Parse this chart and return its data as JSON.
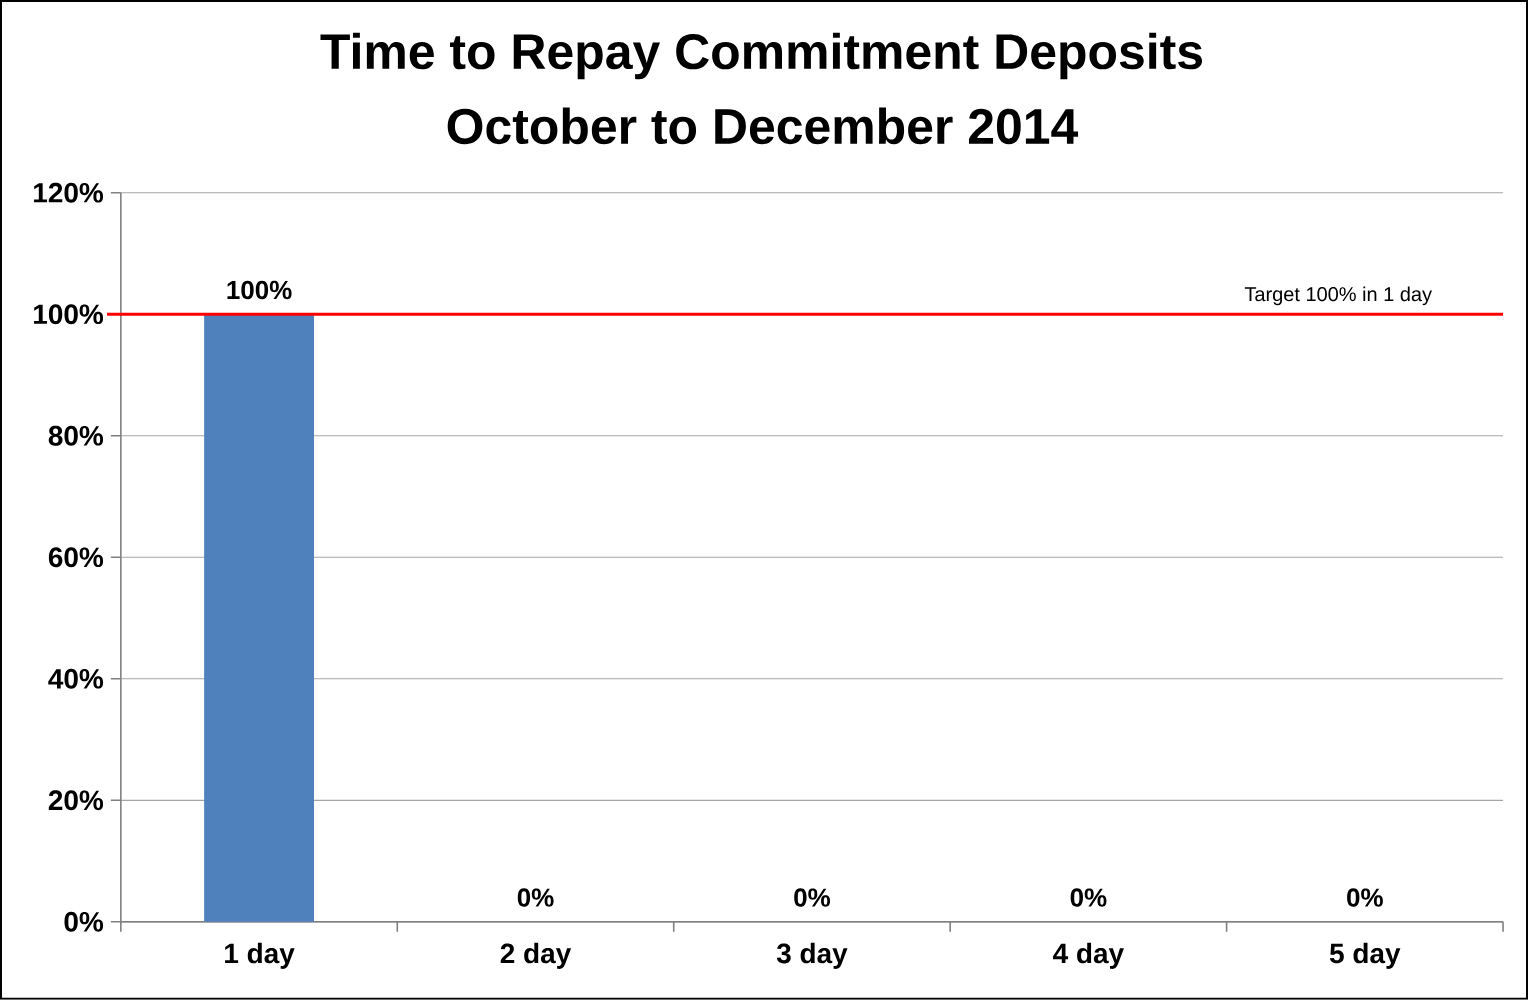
{
  "chart_data": {
    "type": "bar",
    "title": "Time to Repay Commitment Deposits",
    "subtitle": "October to  December 2014",
    "categories": [
      "1 day",
      "2 day",
      "3 day",
      "4 day",
      "5 day"
    ],
    "values": [
      100,
      0,
      0,
      0,
      0
    ],
    "value_labels": [
      "100%",
      "0%",
      "0%",
      "0%",
      "0%"
    ],
    "color": "#4f81bd",
    "ylim": [
      0,
      120
    ],
    "yticks": [
      {
        "value": 0,
        "label": "0%"
      },
      {
        "value": 20,
        "label": "20%"
      },
      {
        "value": 40,
        "label": "40%"
      },
      {
        "value": 60,
        "label": "60%"
      },
      {
        "value": 80,
        "label": "80%"
      },
      {
        "value": 100,
        "label": "100%"
      },
      {
        "value": 120,
        "label": "120%"
      }
    ],
    "grid": "y",
    "ref_lines": [
      {
        "axis": "y",
        "value": 100,
        "label": "Target 100% in 1 day",
        "color": "#ff0000"
      }
    ]
  }
}
